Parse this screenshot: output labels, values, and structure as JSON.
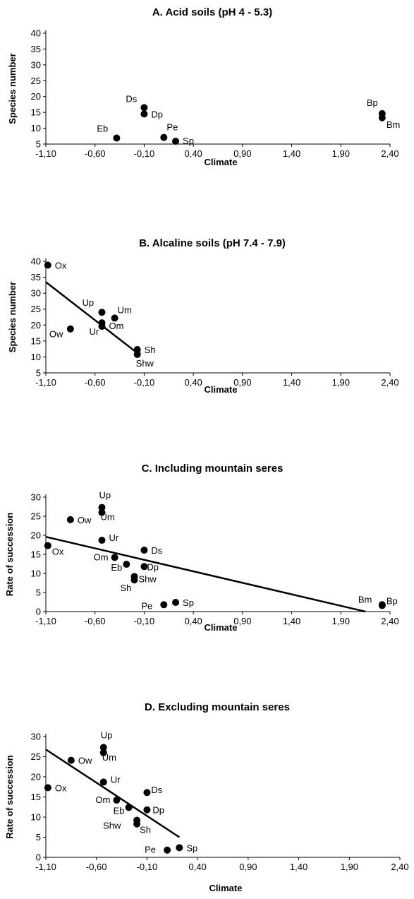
{
  "chart_data": [
    {
      "type": "scatter",
      "title": "A. Acid soils (pH 4 - 5.3)",
      "xlabel": "Climate",
      "ylabel": "Species number",
      "xlim": [
        -1.1,
        2.4
      ],
      "ylim": [
        5,
        40
      ],
      "xticks": [
        "-1,10",
        "-0,60",
        "-0,10",
        "0,40",
        "0,90",
        "1,40",
        "1,90",
        "2,40"
      ],
      "yticks": [
        "5",
        "10",
        "15",
        "20",
        "25",
        "30",
        "35",
        "40"
      ],
      "points": [
        {
          "label": "Ds",
          "x": -0.1,
          "y": 16.5
        },
        {
          "label": "Dp",
          "x": -0.1,
          "y": 14.5
        },
        {
          "label": "Eb",
          "x": -0.38,
          "y": 6.9
        },
        {
          "label": "Pe",
          "x": 0.1,
          "y": 7.1
        },
        {
          "label": "Sp",
          "x": 0.22,
          "y": 5.9
        },
        {
          "label": "Bp",
          "x": 2.32,
          "y": 14.6
        },
        {
          "label": "Bm",
          "x": 2.32,
          "y": 13.3
        }
      ]
    },
    {
      "type": "scatter",
      "title": "B. Alcaline soils (pH 7.4 - 7.9)",
      "xlabel": "Climate",
      "ylabel": "Species number",
      "xlim": [
        -1.1,
        2.4
      ],
      "ylim": [
        5,
        40
      ],
      "xticks": [
        "-1,10",
        "-0,60",
        "-0,10",
        "0,40",
        "0,90",
        "1,40",
        "1,90",
        "2,40"
      ],
      "yticks": [
        "5",
        "10",
        "15",
        "20",
        "25",
        "30",
        "35",
        "40"
      ],
      "points": [
        {
          "label": "Ox",
          "x": -1.08,
          "y": 38.8
        },
        {
          "label": "Up",
          "x": -0.53,
          "y": 24.0
        },
        {
          "label": "Um",
          "x": -0.4,
          "y": 22.2
        },
        {
          "label": "Om",
          "x": -0.53,
          "y": 20.7
        },
        {
          "label": "Ur",
          "x": -0.53,
          "y": 19.6
        },
        {
          "label": "Ow",
          "x": -0.85,
          "y": 18.8
        },
        {
          "label": "Sh",
          "x": -0.17,
          "y": 12.3
        },
        {
          "label": "Shw",
          "x": -0.17,
          "y": 10.8
        }
      ],
      "trendline": {
        "x": [
          -1.1,
          -0.14
        ],
        "y": [
          33.5,
          10.5
        ]
      }
    },
    {
      "type": "scatter",
      "title": "C. Including mountain seres",
      "xlabel": "Climate",
      "ylabel": "Rate of succession",
      "xlim": [
        -1.1,
        2.4
      ],
      "ylim": [
        0,
        30
      ],
      "xticks": [
        "-1,10",
        "-0,60",
        "-0,10",
        "0,40",
        "0,90",
        "1,40",
        "1,90",
        "2,40"
      ],
      "yticks": [
        "0",
        "5",
        "10",
        "15",
        "20",
        "25",
        "30"
      ],
      "points": [
        {
          "label": "Up",
          "x": -0.53,
          "y": 27.3
        },
        {
          "label": "Um",
          "x": -0.53,
          "y": 26.0
        },
        {
          "label": "Ow",
          "x": -0.85,
          "y": 24.1
        },
        {
          "label": "Ur",
          "x": -0.53,
          "y": 18.7
        },
        {
          "label": "Ox",
          "x": -1.08,
          "y": 17.3
        },
        {
          "label": "Ds",
          "x": -0.1,
          "y": 16.1
        },
        {
          "label": "Om",
          "x": -0.4,
          "y": 14.2
        },
        {
          "label": "Eb",
          "x": -0.28,
          "y": 12.4
        },
        {
          "label": "Dp",
          "x": -0.1,
          "y": 11.8
        },
        {
          "label": "Shw",
          "x": -0.2,
          "y": 9.2
        },
        {
          "label": "Sh",
          "x": -0.2,
          "y": 8.3
        },
        {
          "label": "Pe",
          "x": 0.1,
          "y": 1.8
        },
        {
          "label": "Sp",
          "x": 0.22,
          "y": 2.4
        },
        {
          "label": "Bm",
          "x": 2.32,
          "y": 1.8
        },
        {
          "label": "Bp",
          "x": 2.32,
          "y": 1.6
        }
      ],
      "trendline": {
        "x": [
          -1.1,
          2.15
        ],
        "y": [
          19.6,
          0.0
        ]
      }
    },
    {
      "type": "scatter",
      "title": "D. Excluding mountain seres",
      "xlabel": "Climate",
      "ylabel": "Rate of succession",
      "xlim": [
        -1.1,
        2.4
      ],
      "ylim": [
        0,
        30
      ],
      "xticks": [
        "-1,10",
        "-0,60",
        "-0,10",
        "0,40",
        "0,90",
        "1,40",
        "1,90",
        "2,40"
      ],
      "yticks": [
        "0",
        "5",
        "10",
        "15",
        "20",
        "25",
        "30"
      ],
      "points": [
        {
          "label": "Up",
          "x": -0.53,
          "y": 27.3
        },
        {
          "label": "Um",
          "x": -0.53,
          "y": 26.0
        },
        {
          "label": "Ow",
          "x": -0.85,
          "y": 24.1
        },
        {
          "label": "Ur",
          "x": -0.53,
          "y": 18.7
        },
        {
          "label": "Ox",
          "x": -1.08,
          "y": 17.3
        },
        {
          "label": "Ds",
          "x": -0.1,
          "y": 16.1
        },
        {
          "label": "Om",
          "x": -0.4,
          "y": 14.2
        },
        {
          "label": "Eb",
          "x": -0.28,
          "y": 12.4
        },
        {
          "label": "Dp",
          "x": -0.1,
          "y": 11.8
        },
        {
          "label": "Shw",
          "x": -0.2,
          "y": 9.2
        },
        {
          "label": "Sh",
          "x": -0.2,
          "y": 8.3
        },
        {
          "label": "Pe",
          "x": 0.1,
          "y": 1.8
        },
        {
          "label": "Sp",
          "x": 0.22,
          "y": 2.4
        }
      ],
      "trendline": {
        "x": [
          -1.1,
          0.22
        ],
        "y": [
          26.8,
          5.0
        ]
      }
    }
  ]
}
